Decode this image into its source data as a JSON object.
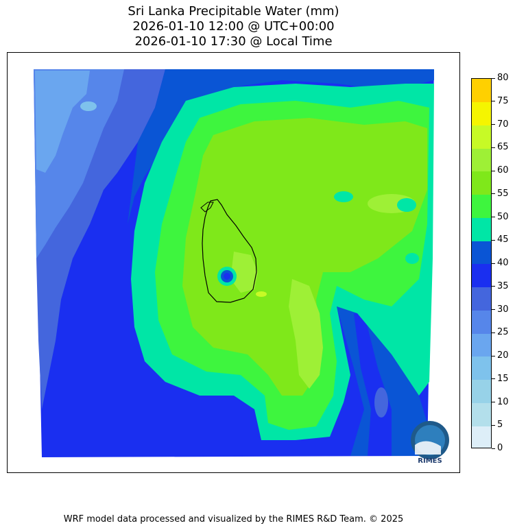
{
  "title": {
    "line1": "Sri Lanka Precipitable Water (mm)",
    "line2": "2026-01-10 12:00 @ UTC+00:00",
    "line3": "2026-01-10 17:30 @ Local Time"
  },
  "colorbar": {
    "ticks": [
      "0",
      "5",
      "10",
      "15",
      "20",
      "25",
      "30",
      "35",
      "40",
      "45",
      "50",
      "55",
      "60",
      "65",
      "70",
      "75",
      "80"
    ],
    "colors": [
      "#ddeef8",
      "#b3dfeb",
      "#97d2e8",
      "#7ec2ec",
      "#6aa6ef",
      "#5686ea",
      "#4466dd",
      "#1a2ff0",
      "#0a55d5",
      "#00e6a6",
      "#3ef53e",
      "#7fe81a",
      "#9ef036",
      "#c7fa26",
      "#f5f500",
      "#ffd000"
    ]
  },
  "logo": {
    "text": "RIMES"
  },
  "footer": "WRF model data processed and visualized by the RIMES R&D Team. © 2025"
}
